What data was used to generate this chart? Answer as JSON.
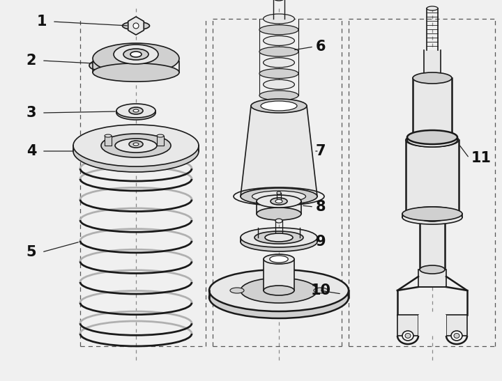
{
  "bg": "#f0f0f0",
  "lc": "#1a1a1a",
  "lc2": "#555555",
  "white": "#ffffff",
  "gray1": "#e8e8e8",
  "gray2": "#d0d0d0",
  "gray3": "#b0b0b0",
  "fig_w": 7.2,
  "fig_h": 5.47,
  "dpi": 100
}
